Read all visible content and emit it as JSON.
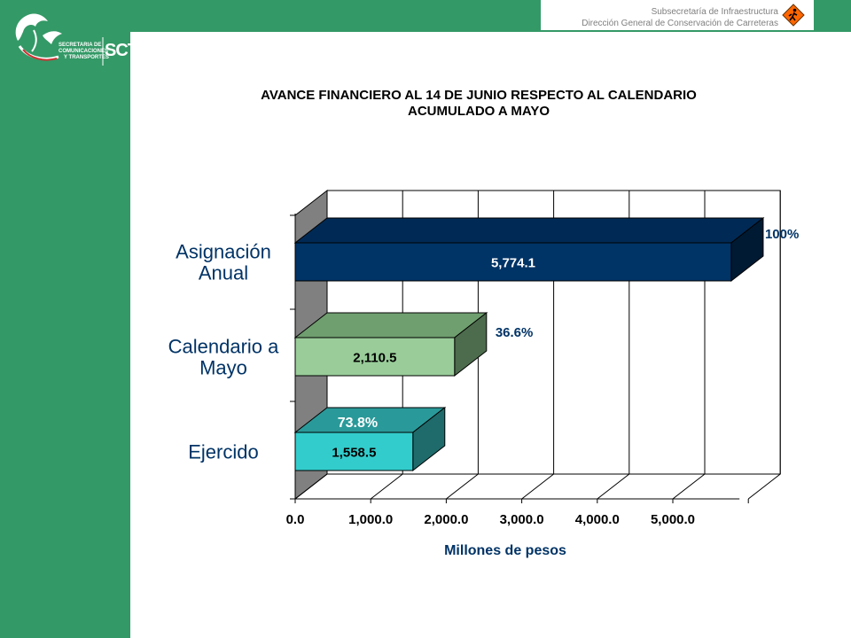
{
  "header": {
    "line1": "Subsecretaría de Infraestructura",
    "line2": "Dirección General de Conservación de Carreteras",
    "icon": "road-worker-icon"
  },
  "logo": {
    "agency_line1": "SECRETARIA DE",
    "agency_line2": "COMUNICACIONES",
    "agency_line3": "Y TRANSPORTES",
    "acronym": "SCT"
  },
  "colors": {
    "frame_green": "#339966",
    "asignacion_front": "#003366",
    "asignacion_top": "#002a55",
    "calendario_front": "#99cc99",
    "calendario_top": "#6f9e6f",
    "ejercido_front": "#33cccc",
    "ejercido_top": "#2a9999"
  },
  "chart_data": {
    "type": "bar",
    "orientation": "horizontal",
    "title_line1": "AVANCE FINANCIERO AL 14 DE JUNIO RESPECTO AL CALENDARIO",
    "title_line2": "ACUMULADO A MAYO",
    "xlabel": "Millones de pesos",
    "xlim": [
      0,
      6000
    ],
    "xticks": [
      "0.0",
      "1,000.0",
      "2,000.0",
      "3,000.0",
      "4,000.0",
      "5,000.0"
    ],
    "grid": true,
    "bars": [
      {
        "category_line1": "Asignación",
        "category_line2": "Anual",
        "value": 5774.1,
        "value_label": "5,774.1",
        "percent_label": "100%"
      },
      {
        "category_line1": "Calendario a",
        "category_line2": "Mayo",
        "value": 2110.5,
        "value_label": "2,110.5",
        "percent_label": "36.6%"
      },
      {
        "category_line1": "Ejercido",
        "category_line2": "",
        "value": 1558.5,
        "value_label": "1,558.5",
        "percent_label": "73.8%"
      }
    ]
  }
}
